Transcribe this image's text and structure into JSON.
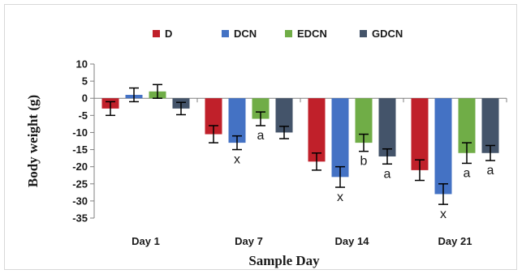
{
  "chart_data": {
    "type": "bar",
    "title": "",
    "xlabel": "Sample Day",
    "ylabel": "Body weight (g)",
    "ylim": [
      -35,
      10
    ],
    "yticks": [
      10,
      5,
      0,
      -5,
      -10,
      -15,
      -20,
      -25,
      -30,
      -35
    ],
    "categories": [
      "Day 1",
      "Day 7",
      "Day 14",
      "Day 21"
    ],
    "legend_position": "top",
    "grid": false,
    "series": [
      {
        "name": "D",
        "color": "#c0202a",
        "values": [
          -3,
          -10.5,
          -18.5,
          -21
        ],
        "errors": [
          2,
          2.5,
          2.5,
          3
        ],
        "annotations": [
          "",
          "",
          "",
          ""
        ]
      },
      {
        "name": "DCN",
        "color": "#4472c4",
        "values": [
          1,
          -13,
          -23,
          -28
        ],
        "errors": [
          2,
          2,
          3,
          3
        ],
        "annotations": [
          "",
          "x",
          "x",
          "x"
        ]
      },
      {
        "name": "EDCN",
        "color": "#70ad47",
        "values": [
          2,
          -6,
          -13,
          -16
        ],
        "errors": [
          2,
          2,
          2.5,
          3
        ],
        "annotations": [
          "",
          "a",
          "b",
          "a"
        ]
      },
      {
        "name": "GDCN",
        "color": "#44546a",
        "values": [
          -3,
          -10,
          -17,
          -16
        ],
        "errors": [
          1.8,
          1.8,
          2.2,
          2.2
        ],
        "annotations": [
          "",
          "",
          "a",
          "a"
        ]
      }
    ]
  }
}
